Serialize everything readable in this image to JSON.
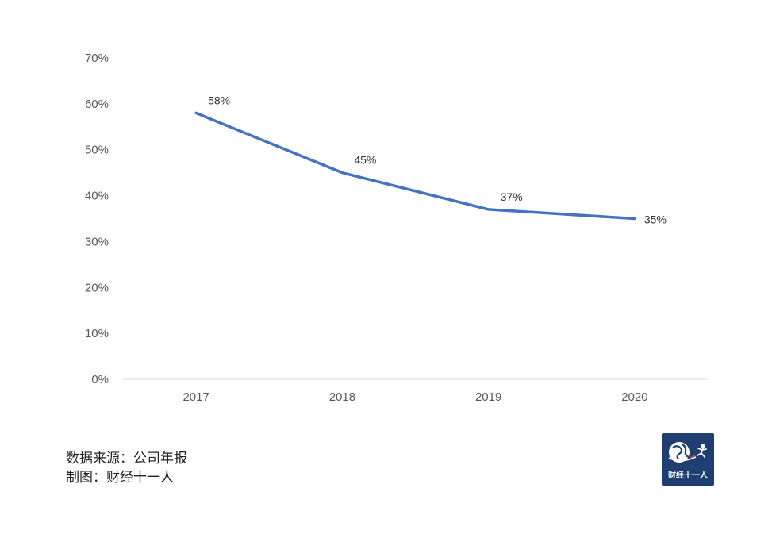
{
  "chart_data": {
    "type": "line",
    "categories": [
      "2017",
      "2018",
      "2019",
      "2020"
    ],
    "series": [
      {
        "values": [
          58,
          45,
          37,
          35
        ],
        "labels": [
          "58%",
          "45%",
          "37%",
          "35%"
        ],
        "color": "#4472c4"
      }
    ],
    "y_ticks": [
      "0%",
      "10%",
      "20%",
      "30%",
      "40%",
      "50%",
      "60%",
      "70%"
    ],
    "ylim": [
      0,
      70
    ],
    "grid": false,
    "legend": "none"
  },
  "notes": {
    "source": "数据来源：公司年报",
    "credit": "制图：财经十一人"
  },
  "logo": {
    "text": "财经十一人",
    "icon": "globe-runner-icon",
    "bg_color": "#1f3f73"
  }
}
